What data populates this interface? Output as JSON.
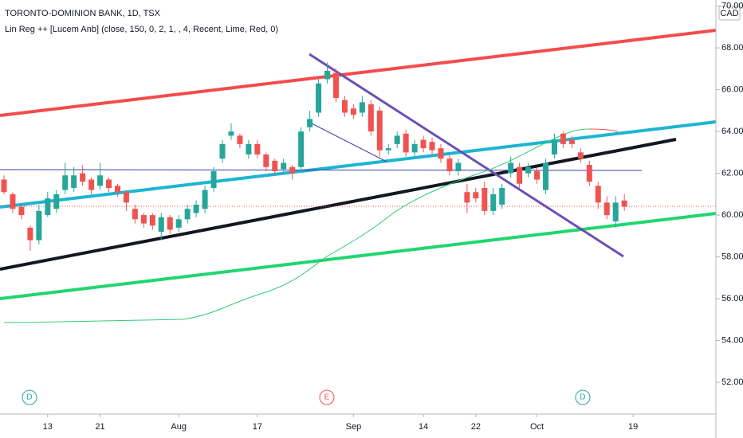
{
  "chart_data": {
    "type": "candlestick",
    "title": "TORONTO-DOMINION BANK, 1D, TSX",
    "indicator": "Lin Reg ++ [Lucem Anb] (close, 150, 0, 2, 1, , 4, Recent, Lime, Red, 0)",
    "currency": "CAD",
    "events": [
      "D",
      "E",
      "D"
    ],
    "up_color": "#26a69a",
    "down_color": "#ef5350",
    "categories": [
      null,
      null,
      null,
      null,
      null,
      "13",
      null,
      null,
      null,
      null,
      null,
      "21",
      null,
      null,
      null,
      null,
      null,
      null,
      null,
      null,
      "Aug",
      null,
      null,
      null,
      null,
      null,
      null,
      null,
      null,
      "17",
      null,
      null,
      null,
      null,
      null,
      null,
      null,
      null,
      null,
      null,
      "Sep",
      null,
      null,
      null,
      null,
      null,
      null,
      null,
      "14",
      null,
      null,
      null,
      null,
      null,
      "22",
      null,
      null,
      null,
      null,
      null,
      null,
      "Oct",
      null,
      null,
      null,
      null,
      null,
      null,
      null,
      null,
      null,
      null,
      "19"
    ],
    "open": [
      61.7,
      61.0,
      60.4,
      59.4,
      58.8,
      60.0,
      60.3,
      61.2,
      61.3,
      62.0,
      61.7,
      61.4,
      61.7,
      61.4,
      61.1,
      60.3,
      60.0,
      60.0,
      59.2,
      59.9,
      59.4,
      59.8,
      60.1,
      60.3,
      61.3,
      62.7,
      63.8,
      63.8,
      62.9,
      63.4,
      62.9,
      62.6,
      62.2,
      62.3,
      62.3,
      64.2,
      64.9,
      66.5,
      66.8,
      65.5,
      65.1,
      64.9,
      65.3,
      65.0,
      63.1,
      63.4,
      63.9,
      63.0,
      63.6,
      63.5,
      63.2,
      62.7,
      62.1,
      61.1,
      61.1,
      61.3,
      60.2,
      60.5,
      62.0,
      62.3,
      62.0,
      62.1,
      61.2,
      62.9,
      63.9,
      63.6,
      63.0,
      62.4,
      61.4,
      60.6,
      59.7,
      60.7,
      null
    ],
    "high": [
      61.9,
      61.1,
      60.5,
      59.5,
      60.5,
      61.1,
      61.2,
      62.5,
      62.3,
      62.4,
      61.8,
      62.5,
      61.8,
      61.5,
      61.2,
      60.5,
      60.1,
      60.1,
      60.1,
      60.0,
      60.0,
      60.5,
      60.7,
      61.4,
      62.3,
      63.6,
      64.4,
      63.9,
      63.6,
      63.6,
      63.0,
      62.7,
      62.7,
      62.4,
      64.2,
      65.0,
      66.5,
      67.3,
      67.0,
      65.7,
      65.3,
      65.7,
      65.5,
      65.2,
      63.4,
      64.0,
      64.1,
      63.6,
      63.8,
      63.7,
      63.4,
      62.9,
      62.7,
      61.5,
      61.3,
      61.6,
      61.3,
      61.5,
      62.8,
      62.5,
      62.5,
      62.3,
      62.7,
      63.9,
      64.0,
      63.8,
      63.2,
      62.6,
      61.6,
      60.9,
      60.9,
      61.0,
      null
    ],
    "low": [
      61.0,
      60.1,
      59.8,
      58.3,
      58.6,
      59.9,
      60.1,
      61.0,
      61.1,
      61.4,
      61.0,
      61.2,
      61.1,
      60.9,
      60.2,
      59.6,
      59.4,
      59.3,
      58.8,
      59.1,
      59.2,
      59.6,
      59.9,
      60.1,
      61.1,
      62.5,
      63.6,
      63.2,
      62.7,
      62.7,
      62.1,
      61.9,
      62.0,
      61.7,
      62.1,
      64.0,
      64.7,
      66.3,
      65.4,
      64.7,
      64.6,
      64.7,
      63.8,
      62.8,
      62.9,
      63.2,
      62.8,
      62.8,
      63.0,
      62.9,
      62.5,
      61.9,
      61.9,
      60.1,
      60.6,
      60.0,
      60.0,
      60.3,
      61.8,
      61.3,
      61.8,
      61.5,
      61.0,
      62.7,
      63.2,
      63.2,
      62.5,
      61.4,
      60.3,
      59.8,
      59.4,
      60.2,
      null
    ],
    "close": [
      61.1,
      60.3,
      60.0,
      58.8,
      60.2,
      60.8,
      61.0,
      61.9,
      61.9,
      61.6,
      61.2,
      61.9,
      61.3,
      61.1,
      60.6,
      59.8,
      59.6,
      59.5,
      59.9,
      59.3,
      59.8,
      60.3,
      60.5,
      61.2,
      62.1,
      63.4,
      64.0,
      63.4,
      63.4,
      62.9,
      62.3,
      62.1,
      62.5,
      62.0,
      64.0,
      64.6,
      66.3,
      66.9,
      65.6,
      64.9,
      64.8,
      65.4,
      64.0,
      63.1,
      63.2,
      63.8,
      63.0,
      63.4,
      63.2,
      63.1,
      62.7,
      62.1,
      62.5,
      60.6,
      60.8,
      60.2,
      61.0,
      61.3,
      62.5,
      61.5,
      62.3,
      61.7,
      62.5,
      63.6,
      63.4,
      63.4,
      62.7,
      61.6,
      60.6,
      60.0,
      60.6,
      60.4,
      null
    ],
    "ylim": [
      50.48,
      70.29
    ],
    "yticks": [
      {
        "value": 52,
        "label": "52.00"
      },
      {
        "value": 54,
        "label": "54.00"
      },
      {
        "value": 56,
        "label": "56.00"
      },
      {
        "value": 58,
        "label": "58.00"
      },
      {
        "value": 60,
        "label": "60.00"
      },
      {
        "value": 62,
        "label": "62.00"
      },
      {
        "value": 64,
        "label": "64.00"
      },
      {
        "value": 66,
        "label": "66.00"
      },
      {
        "value": 68,
        "label": "68.00"
      },
      {
        "value": 70,
        "label": "70.00"
      }
    ]
  }
}
